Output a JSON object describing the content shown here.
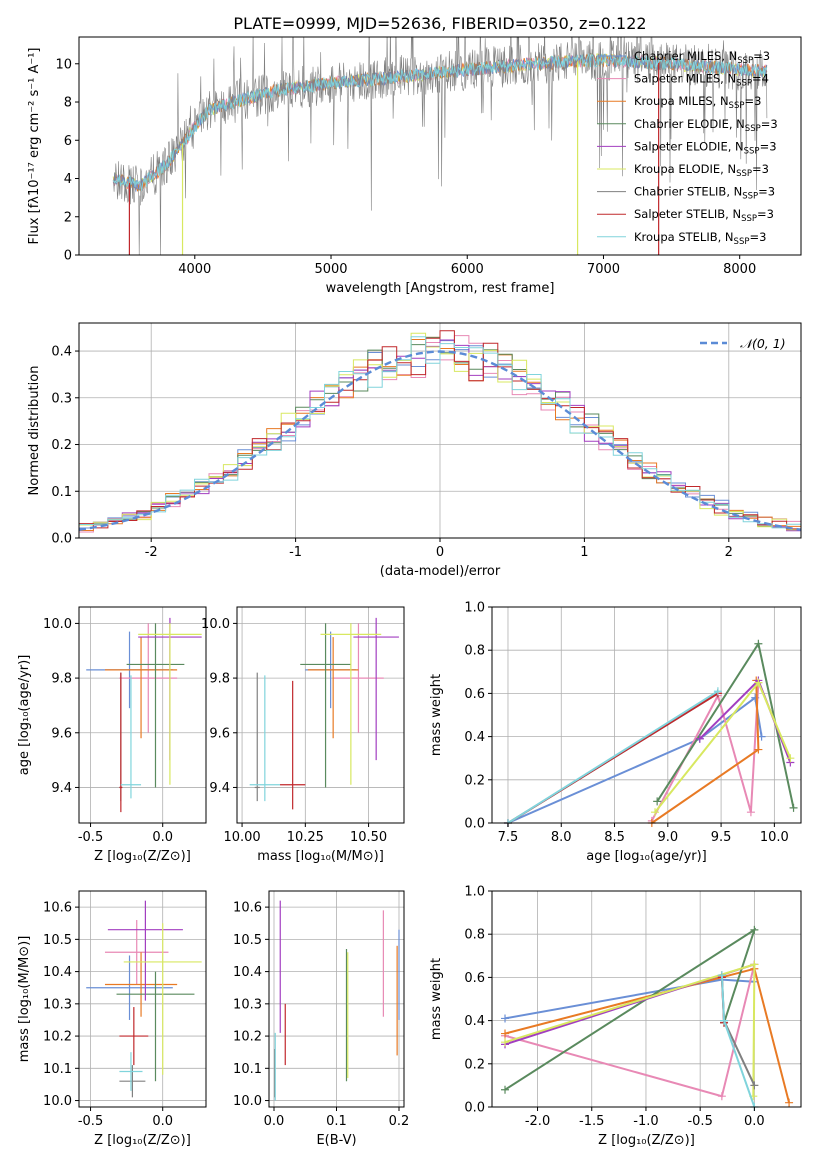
{
  "title": "PLATE=0999, MJD=52636, FIBERID=0350, z=0.122",
  "colors": {
    "Chabrier MILES": "#6a8fd6",
    "Salpeter MILES": "#e889b5",
    "Kroupa MILES": "#e87a24",
    "Chabrier ELODIE": "#5a8a5e",
    "Salpeter ELODIE": "#a23ec0",
    "Kroupa ELODIE": "#d8e860",
    "Chabrier STELIB": "#808080",
    "Salpeter STELIB": "#c0282c",
    "Kroupa STELIB": "#80d4dc",
    "normal_curve": "#5b8bd6"
  },
  "legend_spectrum": [
    {
      "name": "Chabrier MILES",
      "label_main": "Chabrier MILES, N",
      "nssp": "=3"
    },
    {
      "name": "Salpeter MILES",
      "label_main": "Salpeter MILES, N",
      "nssp": "=4"
    },
    {
      "name": "Kroupa MILES",
      "label_main": "Kroupa MILES, N",
      "nssp": "=3"
    },
    {
      "name": "Chabrier ELODIE",
      "label_main": "Chabrier ELODIE, N",
      "nssp": "=3"
    },
    {
      "name": "Salpeter ELODIE",
      "label_main": "Salpeter ELODIE, N",
      "nssp": "=3"
    },
    {
      "name": "Kroupa ELODIE",
      "label_main": "Kroupa ELODIE, N",
      "nssp": "=3"
    },
    {
      "name": "Chabrier STELIB",
      "label_main": "Chabrier STELIB, N",
      "nssp": "=3"
    },
    {
      "name": "Salpeter STELIB",
      "label_main": "Salpeter STELIB, N",
      "nssp": "=3"
    },
    {
      "name": "Kroupa STELIB",
      "label_main": "Kroupa STELIB, N",
      "nssp": "=3"
    }
  ],
  "nssp_sub": "SSP",
  "legend_hist": "𝒩(0, 1)",
  "chart_data": [
    {
      "id": "spectrum",
      "type": "line",
      "xlabel": "wavelength [Angstrom, rest frame]",
      "ylabel": "Flux [fλ10⁻¹⁷ erg cm⁻² s⁻¹ A⁻¹]",
      "xlim": [
        3150,
        8450
      ],
      "ylim": [
        0,
        11.4
      ],
      "xticks": [
        4000,
        5000,
        6000,
        7000,
        8000
      ],
      "yticks": [
        0,
        2,
        4,
        6,
        8,
        10
      ],
      "spectrum_range": [
        3400,
        8200
      ],
      "continuum": [
        [
          3400,
          4.0
        ],
        [
          3600,
          3.6
        ],
        [
          3800,
          4.8
        ],
        [
          3950,
          6.2
        ],
        [
          4100,
          7.6
        ],
        [
          4300,
          8.0
        ],
        [
          4600,
          8.6
        ],
        [
          5000,
          9.0
        ],
        [
          5500,
          9.3
        ],
        [
          6000,
          9.7
        ],
        [
          6500,
          10.0
        ],
        [
          7000,
          10.2
        ],
        [
          7500,
          10.0
        ],
        [
          8000,
          9.7
        ],
        [
          8200,
          9.6
        ]
      ]
    },
    {
      "id": "residuals",
      "type": "histogram",
      "xlabel": "(data-model)/error",
      "ylabel": "Normed distribution",
      "xlim": [
        -2.5,
        2.5
      ],
      "ylim": [
        0,
        0.46
      ],
      "xticks": [
        -2,
        -1,
        0,
        1,
        2
      ],
      "yticks": [
        0.0,
        0.1,
        0.2,
        0.3,
        0.4
      ],
      "bin_width": 0.1,
      "normal": {
        "mean": 0,
        "sigma": 1
      }
    },
    {
      "id": "age_vs_Z",
      "type": "errorbar",
      "xlabel": "Z [log₁₀(Z/Z⊙)]",
      "ylabel": "age  [log₁₀(age/yr)]",
      "xlim": [
        -0.58,
        0.3
      ],
      "ylim": [
        9.27,
        10.06
      ],
      "xticks": [
        -0.5,
        0.0
      ],
      "yticks": [
        9.4,
        9.6,
        9.8,
        10.0
      ],
      "series": [
        {
          "name": "Chabrier MILES",
          "x": -0.23,
          "xerr": 0.3,
          "y": 9.83,
          "yerr": [
            0.14,
            0.14
          ]
        },
        {
          "name": "Salpeter MILES",
          "x": -0.1,
          "xerr": 0.2,
          "y": 9.8,
          "yerr": [
            0.2,
            0.2
          ]
        },
        {
          "name": "Kroupa MILES",
          "x": -0.15,
          "xerr": 0.25,
          "y": 9.83,
          "yerr": [
            0.25,
            0.12
          ]
        },
        {
          "name": "Chabrier ELODIE",
          "x": -0.05,
          "xerr": 0.2,
          "y": 9.85,
          "yerr": [
            0.45,
            0.15
          ]
        },
        {
          "name": "Salpeter ELODIE",
          "x": 0.05,
          "xerr": 0.22,
          "y": 9.95,
          "yerr": [
            0.45,
            0.07
          ]
        },
        {
          "name": "Kroupa ELODIE",
          "x": 0.05,
          "xerr": 0.22,
          "y": 9.96,
          "yerr": [
            0.55,
            0.04
          ]
        },
        {
          "name": "Chabrier STELIB",
          "x": -0.29,
          "xerr": 0.01,
          "y": 9.4,
          "yerr": [
            0.05,
            0.42
          ]
        },
        {
          "name": "Salpeter STELIB",
          "x": -0.29,
          "xerr": 0.01,
          "y": 9.4,
          "yerr": [
            0.09,
            0.42
          ]
        },
        {
          "name": "Kroupa STELIB",
          "x": -0.22,
          "xerr": 0.07,
          "y": 9.41,
          "yerr": [
            0.05,
            0.4
          ]
        }
      ]
    },
    {
      "id": "age_vs_mass",
      "type": "errorbar",
      "xlabel": "mass [log₁₀(M/M⊙)]",
      "ylabel": "",
      "xlim": [
        9.98,
        10.64
      ],
      "ylim": [
        9.27,
        10.06
      ],
      "xticks": [
        10.0,
        10.25,
        10.5
      ],
      "yticks": [
        9.4,
        9.6,
        9.8,
        10.0
      ],
      "series": [
        {
          "name": "Chabrier MILES",
          "x": 10.35,
          "xerr": 0.1,
          "y": 9.83,
          "yerr": [
            0.14,
            0.14
          ]
        },
        {
          "name": "Salpeter MILES",
          "x": 10.46,
          "xerr": 0.1,
          "y": 9.8,
          "yerr": [
            0.2,
            0.2
          ]
        },
        {
          "name": "Kroupa MILES",
          "x": 10.36,
          "xerr": 0.1,
          "y": 9.83,
          "yerr": [
            0.25,
            0.12
          ]
        },
        {
          "name": "Chabrier ELODIE",
          "x": 10.33,
          "xerr": 0.1,
          "y": 9.85,
          "yerr": [
            0.45,
            0.15
          ]
        },
        {
          "name": "Salpeter ELODIE",
          "x": 10.53,
          "xerr": 0.09,
          "y": 9.95,
          "yerr": [
            0.45,
            0.07
          ]
        },
        {
          "name": "Kroupa ELODIE",
          "x": 10.43,
          "xerr": 0.12,
          "y": 9.96,
          "yerr": [
            0.55,
            0.04
          ]
        },
        {
          "name": "Chabrier STELIB",
          "x": 10.06,
          "xerr": 0.01,
          "y": 9.4,
          "yerr": [
            0.05,
            0.42
          ]
        },
        {
          "name": "Salpeter STELIB",
          "x": 10.2,
          "xerr": 0.05,
          "y": 9.41,
          "yerr": [
            0.09,
            0.38
          ]
        },
        {
          "name": "Kroupa STELIB",
          "x": 10.09,
          "xerr": 0.06,
          "y": 9.41,
          "yerr": [
            0.06,
            0.4
          ]
        }
      ]
    },
    {
      "id": "massweight_vs_age",
      "type": "line",
      "xlabel": "age  [log₁₀(age/yr)]",
      "ylabel": "mass weight",
      "xlim": [
        7.35,
        10.25
      ],
      "ylim": [
        0,
        1
      ],
      "xticks": [
        7.5,
        8.0,
        8.5,
        9.0,
        9.5,
        10.0
      ],
      "yticks": [
        0.0,
        0.2,
        0.4,
        0.6,
        0.8,
        1.0
      ],
      "series": [
        {
          "name": "Chabrier MILES",
          "x": [
            7.5,
            9.3,
            9.82,
            9.88
          ],
          "y": [
            0.0,
            0.39,
            0.58,
            0.4
          ]
        },
        {
          "name": "Salpeter MILES",
          "x": [
            8.85,
            9.47,
            9.78,
            9.85
          ],
          "y": [
            0.01,
            0.59,
            0.05,
            0.65
          ]
        },
        {
          "name": "Kroupa MILES",
          "x": [
            8.85,
            9.85,
            9.83
          ],
          "y": [
            0.0,
            0.34,
            0.66
          ]
        },
        {
          "name": "Chabrier ELODIE",
          "x": [
            8.9,
            9.85,
            10.18
          ],
          "y": [
            0.1,
            0.83,
            0.07
          ]
        },
        {
          "name": "Salpeter ELODIE",
          "x": [
            9.3,
            9.85,
            10.15
          ],
          "y": [
            0.39,
            0.66,
            0.28
          ]
        },
        {
          "name": "Kroupa ELODIE",
          "x": [
            8.88,
            9.85,
            10.15
          ],
          "y": [
            0.05,
            0.65,
            0.3
          ]
        },
        {
          "name": "Chabrier STELIB",
          "x": [
            7.5,
            9.47
          ],
          "y": [
            0.0,
            0.6
          ]
        },
        {
          "name": "Salpeter STELIB",
          "x": [
            7.5,
            9.47
          ],
          "y": [
            0.0,
            0.6
          ]
        },
        {
          "name": "Kroupa STELIB",
          "x": [
            7.5,
            9.47
          ],
          "y": [
            0.0,
            0.61
          ]
        }
      ]
    },
    {
      "id": "mass_vs_Z",
      "type": "errorbar",
      "xlabel": "Z [log₁₀(Z/Z⊙)]",
      "ylabel": "mass [log₁₀(M/M⊙)]",
      "xlim": [
        -0.58,
        0.3
      ],
      "ylim": [
        9.98,
        10.65
      ],
      "xticks": [
        -0.5,
        0.0
      ],
      "yticks": [
        10.0,
        10.1,
        10.2,
        10.3,
        10.4,
        10.5,
        10.6
      ],
      "series": [
        {
          "name": "Chabrier MILES",
          "x": -0.23,
          "xerr": 0.3,
          "y": 10.35,
          "yerr": [
            0.1,
            0.1
          ]
        },
        {
          "name": "Salpeter MILES",
          "x": -0.18,
          "xerr": 0.22,
          "y": 10.46,
          "yerr": [
            0.1,
            0.1
          ]
        },
        {
          "name": "Kroupa MILES",
          "x": -0.15,
          "xerr": 0.25,
          "y": 10.36,
          "yerr": [
            0.1,
            0.1
          ]
        },
        {
          "name": "Chabrier ELODIE",
          "x": -0.05,
          "xerr": 0.27,
          "y": 10.33,
          "yerr": [
            0.27,
            0.07
          ]
        },
        {
          "name": "Salpeter ELODIE",
          "x": -0.12,
          "xerr": 0.26,
          "y": 10.53,
          "yerr": [
            0.22,
            0.09
          ]
        },
        {
          "name": "Kroupa ELODIE",
          "x": 0.0,
          "xerr": 0.27,
          "y": 10.43,
          "yerr": [
            0.35,
            0.12
          ]
        },
        {
          "name": "Chabrier STELIB",
          "x": -0.21,
          "xerr": 0.09,
          "y": 10.06,
          "yerr": [
            0.05,
            0.05
          ]
        },
        {
          "name": "Salpeter STELIB",
          "x": -0.2,
          "xerr": 0.1,
          "y": 10.2,
          "yerr": [
            0.09,
            0.09
          ]
        },
        {
          "name": "Kroupa STELIB",
          "x": -0.22,
          "xerr": 0.08,
          "y": 10.09,
          "yerr": [
            0.06,
            0.06
          ]
        }
      ]
    },
    {
      "id": "mass_vs_EBV",
      "type": "errorbar",
      "xlabel": "E(B-V)",
      "ylabel": "",
      "xlim": [
        -0.008,
        0.208
      ],
      "ylim": [
        9.98,
        10.65
      ],
      "xticks": [
        0.0,
        0.1,
        0.2
      ],
      "yticks": [
        10.0,
        10.1,
        10.2,
        10.3,
        10.4,
        10.5,
        10.6
      ],
      "series": [
        {
          "name": "Chabrier MILES",
          "x": 0.2,
          "y": 10.35,
          "yerr": [
            0.1,
            0.18
          ]
        },
        {
          "name": "Salpeter MILES",
          "x": 0.175,
          "y": 10.46,
          "yerr": [
            0.2,
            0.13
          ]
        },
        {
          "name": "Kroupa MILES",
          "x": 0.197,
          "y": 10.3,
          "yerr": [
            0.16,
            0.18
          ]
        },
        {
          "name": "Chabrier ELODIE",
          "x": 0.116,
          "y": 10.33,
          "yerr": [
            0.27,
            0.14
          ]
        },
        {
          "name": "Salpeter ELODIE",
          "x": 0.01,
          "y": 10.45,
          "yerr": [
            0.24,
            0.17
          ]
        },
        {
          "name": "Kroupa ELODIE",
          "x": 0.118,
          "y": 10.3,
          "yerr": [
            0.23,
            0.16
          ]
        },
        {
          "name": "Chabrier STELIB",
          "x": 0.001,
          "y": 10.06,
          "yerr": [
            0.05,
            0.1
          ]
        },
        {
          "name": "Salpeter STELIB",
          "x": 0.018,
          "y": 10.2,
          "yerr": [
            0.09,
            0.1
          ]
        },
        {
          "name": "Kroupa STELIB",
          "x": 0.002,
          "y": 10.09,
          "yerr": [
            0.09,
            0.12
          ]
        }
      ]
    },
    {
      "id": "massweight_vs_Z",
      "type": "line",
      "xlabel": "Z [log₁₀(Z/Z⊙)]",
      "ylabel": "mass weight",
      "xlim": [
        -2.42,
        0.43
      ],
      "ylim": [
        0,
        1
      ],
      "xticks": [
        -2.0,
        -1.5,
        -1.0,
        -0.5,
        0.0
      ],
      "yticks": [
        0.0,
        0.2,
        0.4,
        0.6,
        0.8,
        1.0
      ],
      "series": [
        {
          "name": "Chabrier MILES",
          "x": [
            -2.3,
            -0.3,
            0.0
          ],
          "y": [
            0.41,
            0.59,
            0.58
          ]
        },
        {
          "name": "Salpeter MILES",
          "x": [
            -2.3,
            -0.3,
            0.0
          ],
          "y": [
            0.33,
            0.05,
            0.66
          ]
        },
        {
          "name": "Kroupa MILES",
          "x": [
            -2.3,
            0.0,
            0.32
          ],
          "y": [
            0.34,
            0.64,
            0.02
          ]
        },
        {
          "name": "Chabrier ELODIE",
          "x": [
            -2.3,
            0.0,
            -0.28
          ],
          "y": [
            0.08,
            0.82,
            0.39
          ]
        },
        {
          "name": "Salpeter ELODIE",
          "x": [
            -2.3,
            0.0
          ],
          "y": [
            0.29,
            0.66
          ]
        },
        {
          "name": "Kroupa ELODIE",
          "x": [
            -2.3,
            0.0,
            -0.01
          ],
          "y": [
            0.3,
            0.66,
            0.05
          ]
        },
        {
          "name": "Chabrier STELIB",
          "x": [
            -0.3,
            -0.28,
            0.0
          ],
          "y": [
            0.61,
            0.4,
            0.1
          ]
        },
        {
          "name": "Salpeter STELIB",
          "x": [
            -0.3,
            -0.28
          ],
          "y": [
            0.6,
            0.39
          ]
        },
        {
          "name": "Kroupa STELIB",
          "x": [
            -0.3,
            -0.28,
            0.0
          ],
          "y": [
            0.61,
            0.4,
            0.0
          ]
        }
      ]
    }
  ]
}
